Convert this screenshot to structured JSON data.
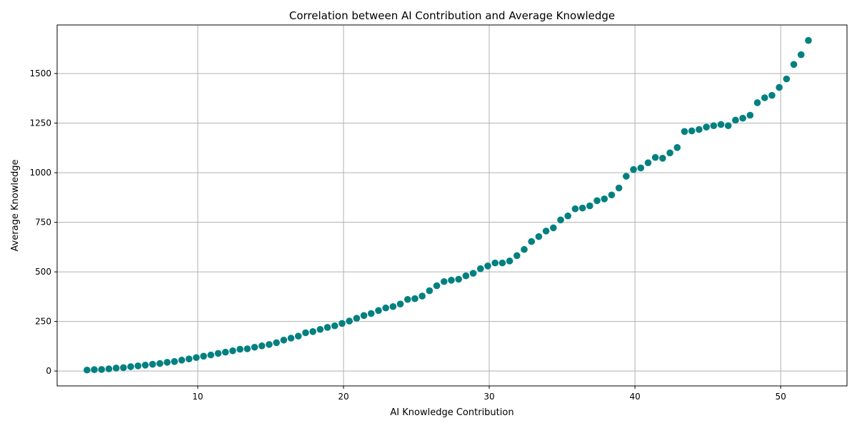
{
  "chart_data": {
    "type": "scatter",
    "title": "Correlation between AI Contribution and Average Knowledge",
    "xlabel": "AI Knowledge Contribution",
    "ylabel": "Average Knowledge",
    "xlim": [
      0.35,
      54.55
    ],
    "ylim": [
      -75,
      1745
    ],
    "xticks": [
      10,
      20,
      30,
      40,
      50
    ],
    "yticks": [
      0,
      250,
      500,
      750,
      1000,
      1250,
      1500
    ],
    "grid": true,
    "marker_color": "#008080",
    "points": [
      [
        2.4,
        5
      ],
      [
        2.9,
        7
      ],
      [
        3.4,
        8
      ],
      [
        3.9,
        11
      ],
      [
        4.4,
        15
      ],
      [
        4.9,
        17
      ],
      [
        5.4,
        22
      ],
      [
        5.9,
        26
      ],
      [
        6.4,
        30
      ],
      [
        6.9,
        34
      ],
      [
        7.4,
        38
      ],
      [
        7.9,
        44
      ],
      [
        8.4,
        48
      ],
      [
        8.9,
        55
      ],
      [
        9.4,
        61
      ],
      [
        9.9,
        68
      ],
      [
        10.4,
        75
      ],
      [
        10.9,
        81
      ],
      [
        11.4,
        89
      ],
      [
        11.9,
        95
      ],
      [
        12.4,
        102
      ],
      [
        12.9,
        110
      ],
      [
        13.4,
        112
      ],
      [
        13.9,
        120
      ],
      [
        14.4,
        127
      ],
      [
        14.9,
        134
      ],
      [
        15.4,
        143
      ],
      [
        15.9,
        156
      ],
      [
        16.4,
        166
      ],
      [
        16.9,
        176
      ],
      [
        17.4,
        193
      ],
      [
        17.9,
        199
      ],
      [
        18.4,
        210
      ],
      [
        18.9,
        220
      ],
      [
        19.4,
        228
      ],
      [
        19.9,
        240
      ],
      [
        20.4,
        252
      ],
      [
        20.9,
        266
      ],
      [
        21.4,
        280
      ],
      [
        21.9,
        290
      ],
      [
        22.4,
        305
      ],
      [
        22.9,
        318
      ],
      [
        23.4,
        325
      ],
      [
        23.9,
        338
      ],
      [
        24.4,
        361
      ],
      [
        24.9,
        365
      ],
      [
        25.4,
        378
      ],
      [
        25.9,
        405
      ],
      [
        26.4,
        430
      ],
      [
        26.9,
        451
      ],
      [
        27.4,
        458
      ],
      [
        27.9,
        463
      ],
      [
        28.4,
        480
      ],
      [
        28.9,
        493
      ],
      [
        29.4,
        516
      ],
      [
        29.9,
        530
      ],
      [
        30.4,
        545
      ],
      [
        30.9,
        545
      ],
      [
        31.4,
        555
      ],
      [
        31.9,
        582
      ],
      [
        32.4,
        613
      ],
      [
        32.9,
        653
      ],
      [
        33.4,
        678
      ],
      [
        33.9,
        706
      ],
      [
        34.4,
        722
      ],
      [
        34.9,
        762
      ],
      [
        35.4,
        782
      ],
      [
        35.9,
        818
      ],
      [
        36.4,
        822
      ],
      [
        36.9,
        833
      ],
      [
        37.4,
        859
      ],
      [
        37.9,
        868
      ],
      [
        38.4,
        888
      ],
      [
        38.9,
        923
      ],
      [
        39.4,
        982
      ],
      [
        39.9,
        1016
      ],
      [
        40.4,
        1024
      ],
      [
        40.9,
        1050
      ],
      [
        41.4,
        1077
      ],
      [
        41.9,
        1073
      ],
      [
        42.4,
        1100
      ],
      [
        42.9,
        1127
      ],
      [
        43.4,
        1208
      ],
      [
        43.9,
        1211
      ],
      [
        44.4,
        1218
      ],
      [
        44.9,
        1230
      ],
      [
        45.4,
        1237
      ],
      [
        45.9,
        1243
      ],
      [
        46.4,
        1237
      ],
      [
        46.9,
        1265
      ],
      [
        47.4,
        1275
      ],
      [
        47.9,
        1290
      ],
      [
        48.4,
        1353
      ],
      [
        48.9,
        1378
      ],
      [
        49.4,
        1390
      ],
      [
        49.9,
        1430
      ],
      [
        50.4,
        1473
      ],
      [
        50.9,
        1546
      ],
      [
        51.4,
        1595
      ],
      [
        51.9,
        1667
      ]
    ]
  }
}
